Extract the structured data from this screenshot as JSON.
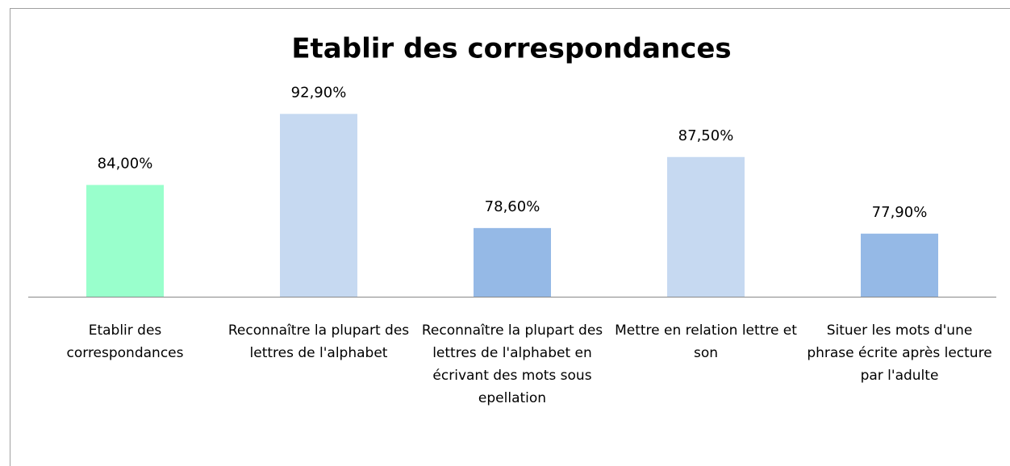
{
  "chart_data": {
    "type": "bar",
    "title": "Etablir des correspondances",
    "categories": [
      "Etablir des correspondances",
      "Reconnaître la plupart des lettres de l'alphabet",
      "Reconnaître la plupart des lettres de l'alphabet en écrivant des mots sous epellation",
      "Mettre en relation lettre et son",
      "Situer les mots d'une phrase écrite après lecture par l'adulte"
    ],
    "values": [
      84,
      92.9,
      78.6,
      87.5,
      77.9
    ],
    "value_labels": [
      "84,00%",
      "92,90%",
      "78,60%",
      "87,50%",
      "77,90%"
    ],
    "colors": [
      "#99ffcc",
      "#c6d9f1",
      "#95b9e6",
      "#c6d9f1",
      "#95b9e6"
    ],
    "ylim": [
      70,
      100
    ]
  }
}
